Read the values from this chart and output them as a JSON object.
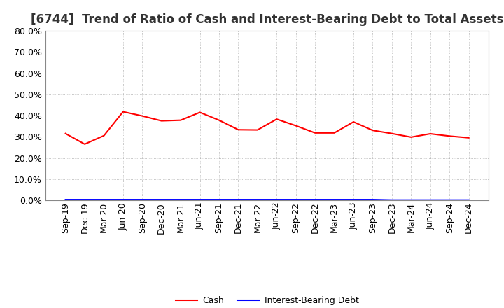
{
  "title": "[6744]  Trend of Ratio of Cash and Interest-Bearing Debt to Total Assets",
  "x_labels": [
    "Sep-19",
    "Dec-19",
    "Mar-20",
    "Jun-20",
    "Sep-20",
    "Dec-20",
    "Mar-21",
    "Jun-21",
    "Sep-21",
    "Dec-21",
    "Mar-22",
    "Jun-22",
    "Sep-22",
    "Dec-22",
    "Mar-23",
    "Jun-23",
    "Sep-23",
    "Dec-23",
    "Mar-24",
    "Jun-24",
    "Sep-24",
    "Dec-24"
  ],
  "cash_values": [
    0.315,
    0.265,
    0.305,
    0.418,
    0.398,
    0.375,
    0.378,
    0.415,
    0.378,
    0.333,
    0.332,
    0.383,
    0.352,
    0.318,
    0.318,
    0.37,
    0.33,
    0.315,
    0.298,
    0.314,
    0.303,
    0.295
  ],
  "debt_values": [
    0.003,
    0.003,
    0.003,
    0.003,
    0.003,
    0.003,
    0.003,
    0.003,
    0.003,
    0.003,
    0.003,
    0.003,
    0.003,
    0.003,
    0.003,
    0.003,
    0.003,
    0.001,
    0.001,
    0.001,
    0.001,
    0.001
  ],
  "cash_color": "#FF0000",
  "debt_color": "#0000FF",
  "ylim": [
    0.0,
    0.8
  ],
  "yticks": [
    0.0,
    0.1,
    0.2,
    0.3,
    0.4,
    0.5,
    0.6,
    0.7,
    0.8
  ],
  "background_color": "#FFFFFF",
  "grid_color": "#AAAAAA",
  "title_fontsize": 12,
  "tick_fontsize": 9,
  "legend_fontsize": 9,
  "legend_labels": [
    "Cash",
    "Interest-Bearing Debt"
  ]
}
